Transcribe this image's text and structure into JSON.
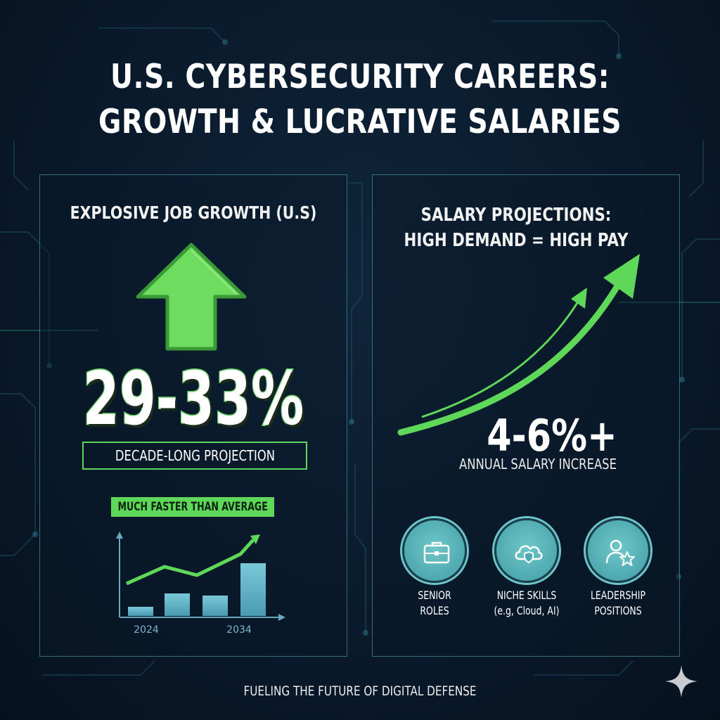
{
  "title": {
    "line1": "U.S. CYBERSECURITY CAREERS:",
    "line2": "GROWTH & LUCRATIVE SALARIES"
  },
  "job_growth": {
    "heading": "EXPLOSIVE JOB GROWTH (U.S)",
    "icon": "up-arrow-icon",
    "percent": "29-33%",
    "projection_label": "DECADE-LONG PROJECTION",
    "badge": "MUCH FASTER THAN AVERAGE",
    "chart": {
      "type": "bar",
      "x_labels": [
        "2024",
        "2034"
      ],
      "bar_levels": [
        0.13,
        0.32,
        0.29,
        0.75
      ],
      "trend_levels": [
        0.38,
        0.62,
        0.5,
        0.8,
        1.0
      ]
    }
  },
  "salary": {
    "heading_line1": "SALARY PROJECTIONS:",
    "heading_line2": "HIGH DEMAND = HIGH PAY",
    "icon": "rising-curve-arrow-icon",
    "percent": "4-6%+",
    "caption": "ANNUAL SALARY INCREASE",
    "items": [
      {
        "icon": "briefcase-icon",
        "line1": "SENIOR",
        "line2": "ROLES"
      },
      {
        "icon": "cloud-shield-icon",
        "line1": "NICHE SKILLS",
        "line2": "(e.g, Cloud, AI)"
      },
      {
        "icon": "person-star-icon",
        "line1": "LEADERSHIP",
        "line2": "POSITIONS"
      }
    ]
  },
  "footer": "FUELING THE FUTURE OF DIGITAL DEFENSE",
  "colors": {
    "background": "#0a1a2c",
    "accent_green": "#5fd85a",
    "accent_teal": "#6fc6c8",
    "panel_border": "#5ab4be"
  }
}
